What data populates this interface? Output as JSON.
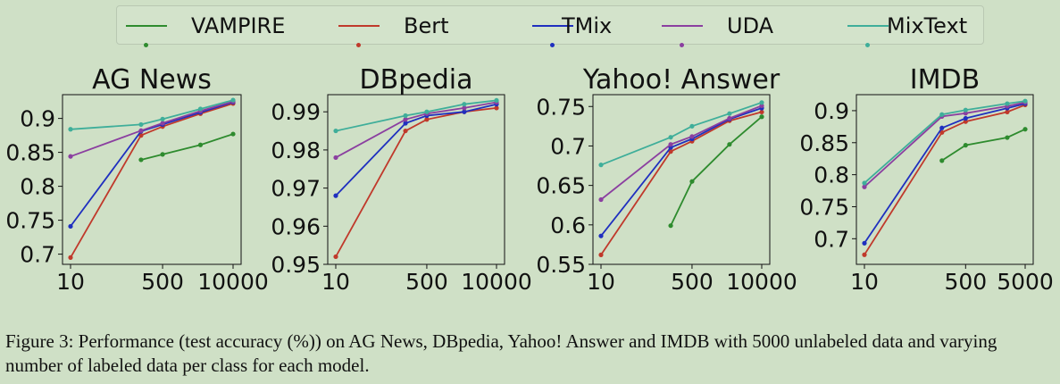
{
  "legend": [
    {
      "name": "VAMPIRE",
      "color": "#2e8b2e"
    },
    {
      "name": "Bert",
      "color": "#c0392b"
    },
    {
      "name": "TMix",
      "color": "#1f2fbf"
    },
    {
      "name": "UDA",
      "color": "#8b3fa0"
    },
    {
      "name": "MixText",
      "color": "#3fae9a"
    }
  ],
  "chart_data": [
    {
      "type": "line",
      "title": "AG News",
      "x_scale": "log",
      "xlim": [
        10,
        10000
      ],
      "ylim": [
        0.685,
        0.935
      ],
      "xticks": [
        10,
        500,
        10000
      ],
      "xtick_labels": [
        "10",
        "500",
        "10000"
      ],
      "yticks": [
        0.7,
        0.75,
        0.8,
        0.85,
        0.9
      ],
      "ytick_labels": [
        "0.7",
        "0.75",
        "0.8",
        "0.85",
        "0.9"
      ],
      "series": [
        {
          "name": "VAMPIRE",
          "x": [
            200,
            500,
            2500,
            10000
          ],
          "y": [
            0.839,
            0.847,
            0.861,
            0.877
          ]
        },
        {
          "name": "Bert",
          "x": [
            10,
            200,
            500,
            2500,
            10000
          ],
          "y": [
            0.695,
            0.875,
            0.888,
            0.907,
            0.922
          ]
        },
        {
          "name": "TMix",
          "x": [
            10,
            200,
            500,
            2500,
            10000
          ],
          "y": [
            0.741,
            0.881,
            0.891,
            0.909,
            0.924
          ]
        },
        {
          "name": "UDA",
          "x": [
            10,
            200,
            500,
            2500,
            10000
          ],
          "y": [
            0.844,
            0.882,
            0.893,
            0.911,
            0.925
          ]
        },
        {
          "name": "MixText",
          "x": [
            10,
            200,
            500,
            2500,
            10000
          ],
          "y": [
            0.884,
            0.891,
            0.899,
            0.914,
            0.927
          ]
        }
      ]
    },
    {
      "type": "line",
      "title": "DBpedia",
      "x_scale": "log",
      "xlim": [
        10,
        10000
      ],
      "ylim": [
        0.95,
        0.9945
      ],
      "xticks": [
        10,
        500,
        10000
      ],
      "xtick_labels": [
        "10",
        "500",
        "10000"
      ],
      "yticks": [
        0.95,
        0.96,
        0.97,
        0.98,
        0.99
      ],
      "ytick_labels": [
        "0.95",
        "0.96",
        "0.97",
        "0.98",
        "0.99"
      ],
      "series": [
        {
          "name": "Bert",
          "x": [
            10,
            200,
            500,
            2500,
            10000
          ],
          "y": [
            0.952,
            0.985,
            0.988,
            0.99,
            0.991
          ]
        },
        {
          "name": "TMix",
          "x": [
            10,
            200,
            500,
            2500,
            10000
          ],
          "y": [
            0.968,
            0.987,
            0.989,
            0.99,
            0.992
          ]
        },
        {
          "name": "UDA",
          "x": [
            10,
            200,
            500,
            2500,
            10000
          ],
          "y": [
            0.978,
            0.988,
            0.9895,
            0.991,
            0.9925
          ]
        },
        {
          "name": "MixText",
          "x": [
            10,
            200,
            500,
            2500,
            10000
          ],
          "y": [
            0.985,
            0.989,
            0.99,
            0.992,
            0.993
          ]
        }
      ]
    },
    {
      "type": "line",
      "title": "Yahoo! Answer",
      "x_scale": "log",
      "xlim": [
        10,
        10000
      ],
      "ylim": [
        0.55,
        0.765
      ],
      "xticks": [
        10,
        500,
        10000
      ],
      "xtick_labels": [
        "10",
        "500",
        "10000"
      ],
      "yticks": [
        0.55,
        0.6,
        0.65,
        0.7,
        0.75
      ],
      "ytick_labels": [
        "0.55",
        "0.6",
        "0.65",
        "0.7",
        "0.75"
      ],
      "series": [
        {
          "name": "VAMPIRE",
          "x": [
            200,
            500,
            2500,
            10000
          ],
          "y": [
            0.599,
            0.655,
            0.702,
            0.737
          ]
        },
        {
          "name": "Bert",
          "x": [
            10,
            200,
            500,
            2500,
            10000
          ],
          "y": [
            0.562,
            0.693,
            0.706,
            0.732,
            0.743
          ]
        },
        {
          "name": "TMix",
          "x": [
            10,
            200,
            500,
            2500,
            10000
          ],
          "y": [
            0.586,
            0.698,
            0.709,
            0.734,
            0.748
          ]
        },
        {
          "name": "UDA",
          "x": [
            10,
            200,
            500,
            2500,
            10000
          ],
          "y": [
            0.632,
            0.702,
            0.712,
            0.735,
            0.751
          ]
        },
        {
          "name": "MixText",
          "x": [
            10,
            200,
            500,
            2500,
            10000
          ],
          "y": [
            0.676,
            0.711,
            0.725,
            0.741,
            0.755
          ]
        }
      ]
    },
    {
      "type": "line",
      "title": "IMDB",
      "x_scale": "log",
      "xlim": [
        10,
        5000
      ],
      "ylim": [
        0.66,
        0.925
      ],
      "xticks": [
        10,
        500,
        5000
      ],
      "xtick_labels": [
        "10",
        "500",
        "5000"
      ],
      "yticks": [
        0.7,
        0.75,
        0.8,
        0.85,
        0.9
      ],
      "ytick_labels": [
        "0.7",
        "0.75",
        "0.8",
        "0.85",
        "0.9"
      ],
      "series": [
        {
          "name": "VAMPIRE",
          "x": [
            200,
            500,
            2500,
            5000
          ],
          "y": [
            0.822,
            0.846,
            0.858,
            0.871
          ]
        },
        {
          "name": "Bert",
          "x": [
            10,
            200,
            500,
            2500,
            5000
          ],
          "y": [
            0.675,
            0.866,
            0.883,
            0.898,
            0.909
          ]
        },
        {
          "name": "TMix",
          "x": [
            10,
            200,
            500,
            2500,
            5000
          ],
          "y": [
            0.693,
            0.873,
            0.888,
            0.904,
            0.911
          ]
        },
        {
          "name": "UDA",
          "x": [
            10,
            200,
            500,
            2500,
            5000
          ],
          "y": [
            0.781,
            0.891,
            0.896,
            0.907,
            0.913
          ]
        },
        {
          "name": "MixText",
          "x": [
            10,
            200,
            500,
            2500,
            5000
          ],
          "y": [
            0.787,
            0.894,
            0.901,
            0.911,
            0.915
          ]
        }
      ]
    }
  ],
  "caption": "Figure 3: Performance (test accuracy (%)) on AG News, DBpedia, Yahoo! Answer and IMDB with 5000 unlabeled data and varying number of labeled data per class for each model."
}
